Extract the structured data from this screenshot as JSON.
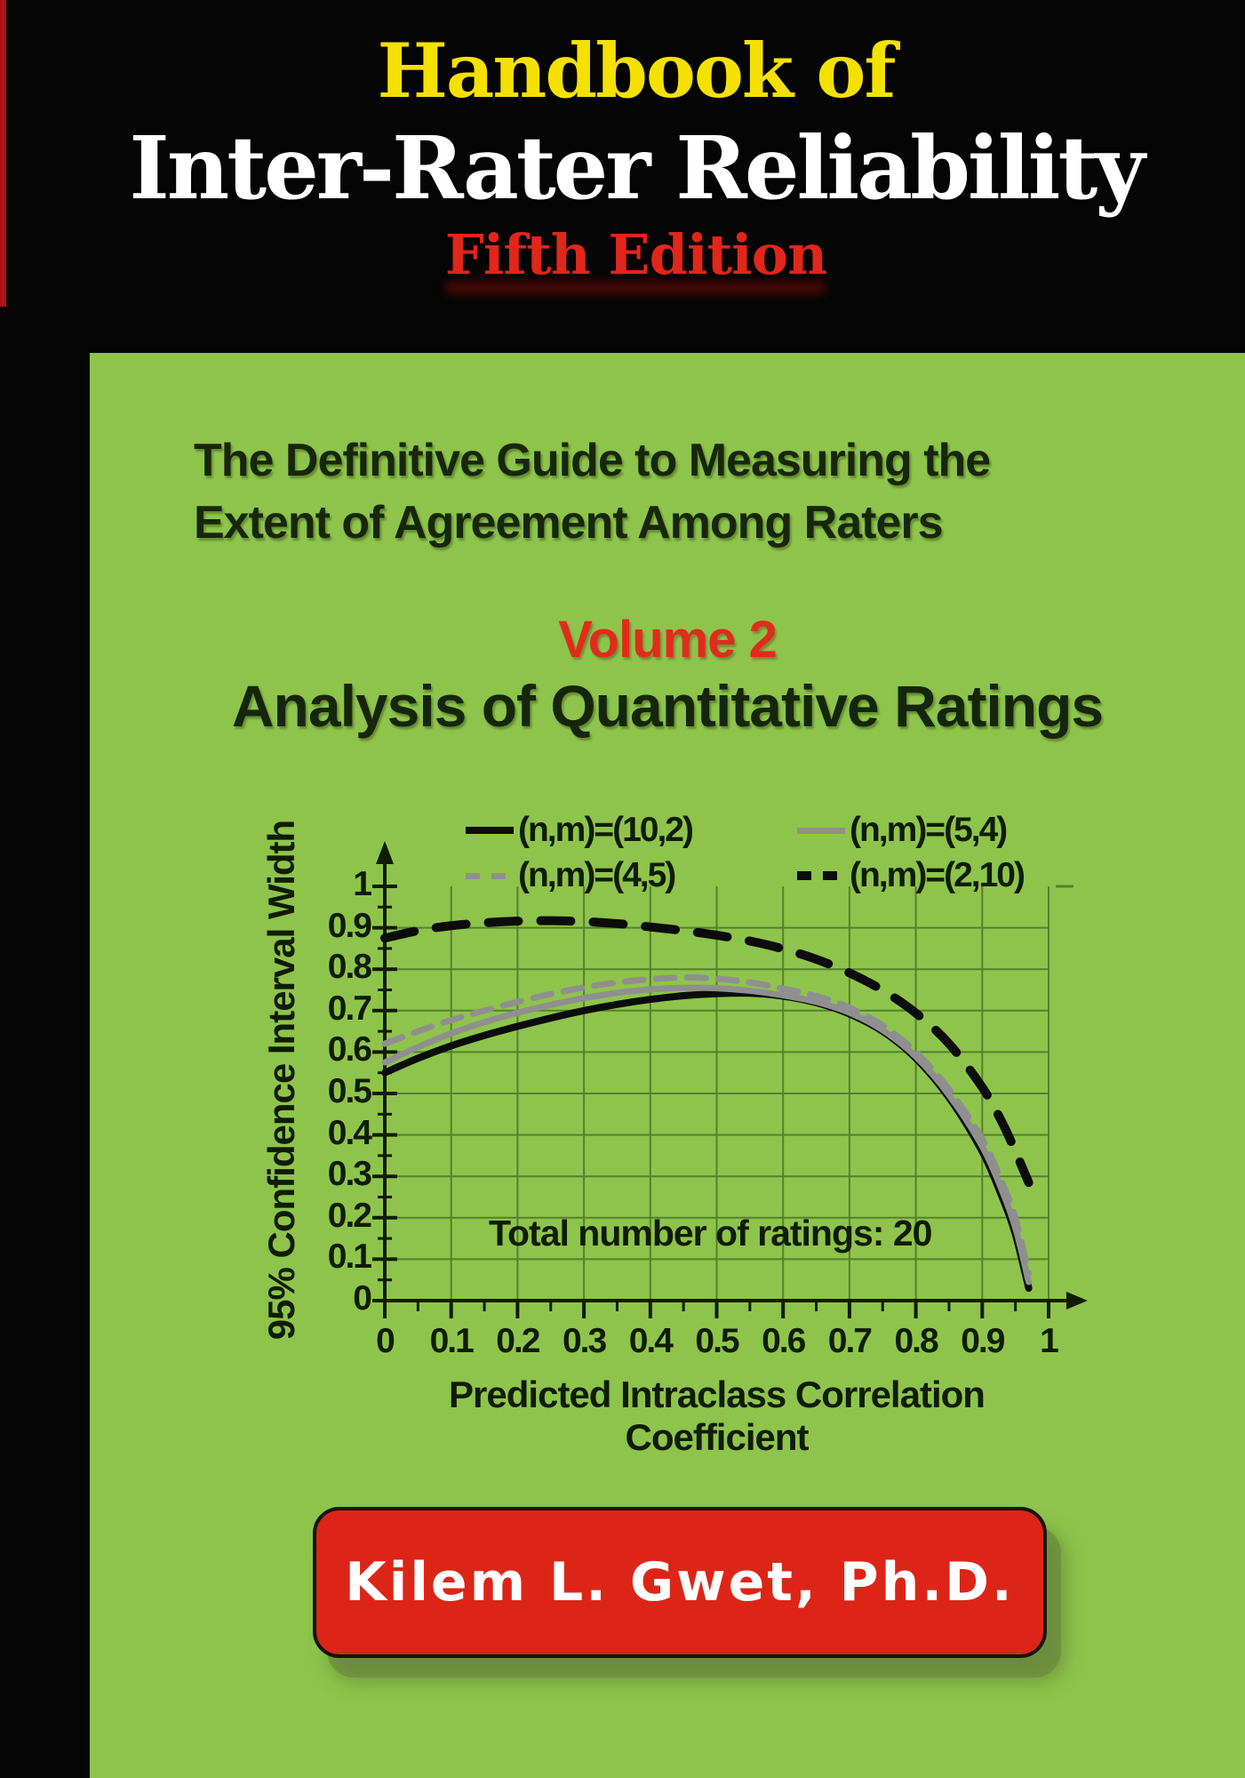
{
  "cover": {
    "title_top": "Handbook of",
    "title_main": "Inter-Rater Reliability",
    "edition": "Fifth Edition",
    "subtitle_line1": "The Definitive Guide to Measuring the",
    "subtitle_line2": "Extent of Agreement Among Raters",
    "volume": "Volume 2",
    "volume_subtitle": "Analysis of Quantitative Ratings",
    "author": "Kilem L. Gwet, Ph.D.",
    "colors": {
      "green_panel": "#8ec44b",
      "title_yellow": "#f5e100",
      "title_white": "#ffffff",
      "title_red": "#e2261a",
      "volume_red": "#e02b1d",
      "dark_text": "#16260c",
      "red_stripe": "#b01117",
      "author_box_red": "#dd2517",
      "curve_black": "#0c0c0c",
      "curve_gray": "#8f8f8f",
      "grid_green": "#55802e"
    }
  },
  "chart_data": {
    "type": "line",
    "title": "",
    "xlabel": "Predicted Intraclass Correlation Coefficient",
    "ylabel": "95% Confidence Interval Width",
    "annotation": "Total number of ratings: 20",
    "xlim": [
      0,
      1
    ],
    "ylim": [
      0,
      1
    ],
    "grid": true,
    "legend_position": "top",
    "x_ticks": [
      "0",
      "0.1",
      "0.2",
      "0.3",
      "0.4",
      "0.5",
      "0.6",
      "0.7",
      "0.8",
      "0.9",
      "1"
    ],
    "y_ticks": [
      "0",
      "0.1",
      "0.2",
      "0.3",
      "0.4",
      "0.5",
      "0.6",
      "0.7",
      "0.8",
      "0.9",
      "1"
    ],
    "series": [
      {
        "name": "(n,m)=(10,2)",
        "color": "#0c0c0c",
        "style": "solid",
        "width": 8,
        "points": [
          [
            0,
            0.55
          ],
          [
            0.05,
            0.585
          ],
          [
            0.1,
            0.615
          ],
          [
            0.15,
            0.64
          ],
          [
            0.2,
            0.662
          ],
          [
            0.25,
            0.682
          ],
          [
            0.3,
            0.7
          ],
          [
            0.35,
            0.715
          ],
          [
            0.4,
            0.727
          ],
          [
            0.45,
            0.736
          ],
          [
            0.5,
            0.741
          ],
          [
            0.55,
            0.742
          ],
          [
            0.6,
            0.735
          ],
          [
            0.65,
            0.719
          ],
          [
            0.7,
            0.692
          ],
          [
            0.75,
            0.65
          ],
          [
            0.8,
            0.585
          ],
          [
            0.85,
            0.49
          ],
          [
            0.9,
            0.36
          ],
          [
            0.93,
            0.25
          ],
          [
            0.95,
            0.16
          ],
          [
            0.97,
            0.03
          ]
        ]
      },
      {
        "name": "(n,m)=(5,4)",
        "color": "#8f8f8f",
        "style": "solid",
        "width": 7,
        "points": [
          [
            0,
            0.575
          ],
          [
            0.05,
            0.612
          ],
          [
            0.1,
            0.645
          ],
          [
            0.15,
            0.672
          ],
          [
            0.2,
            0.695
          ],
          [
            0.25,
            0.714
          ],
          [
            0.3,
            0.73
          ],
          [
            0.35,
            0.743
          ],
          [
            0.4,
            0.751
          ],
          [
            0.45,
            0.755
          ],
          [
            0.5,
            0.754
          ],
          [
            0.55,
            0.748
          ],
          [
            0.6,
            0.737
          ],
          [
            0.65,
            0.721
          ],
          [
            0.7,
            0.695
          ],
          [
            0.75,
            0.653
          ],
          [
            0.8,
            0.589
          ],
          [
            0.85,
            0.496
          ],
          [
            0.9,
            0.372
          ],
          [
            0.93,
            0.265
          ],
          [
            0.95,
            0.175
          ],
          [
            0.97,
            0.045
          ]
        ]
      },
      {
        "name": "(n,m)=(4,5)",
        "color": "#8f8f8f",
        "style": "dashed",
        "dash": "21 14",
        "width": 7,
        "points": [
          [
            0,
            0.62
          ],
          [
            0.05,
            0.65
          ],
          [
            0.1,
            0.677
          ],
          [
            0.15,
            0.7
          ],
          [
            0.2,
            0.721
          ],
          [
            0.25,
            0.74
          ],
          [
            0.3,
            0.756
          ],
          [
            0.35,
            0.768
          ],
          [
            0.4,
            0.776
          ],
          [
            0.45,
            0.78
          ],
          [
            0.5,
            0.777
          ],
          [
            0.55,
            0.768
          ],
          [
            0.6,
            0.753
          ],
          [
            0.65,
            0.735
          ],
          [
            0.7,
            0.707
          ],
          [
            0.75,
            0.664
          ],
          [
            0.8,
            0.6
          ],
          [
            0.85,
            0.51
          ],
          [
            0.9,
            0.39
          ],
          [
            0.93,
            0.285
          ],
          [
            0.95,
            0.2
          ],
          [
            0.97,
            0.065
          ]
        ]
      },
      {
        "name": "(n,m)=(2,10)",
        "color": "#0c0c0c",
        "style": "dashed",
        "dash": "34 25",
        "width": 10,
        "points": [
          [
            0,
            0.875
          ],
          [
            0.05,
            0.893
          ],
          [
            0.1,
            0.905
          ],
          [
            0.15,
            0.912
          ],
          [
            0.2,
            0.916
          ],
          [
            0.25,
            0.917
          ],
          [
            0.3,
            0.915
          ],
          [
            0.35,
            0.91
          ],
          [
            0.4,
            0.902
          ],
          [
            0.45,
            0.893
          ],
          [
            0.5,
            0.882
          ],
          [
            0.55,
            0.868
          ],
          [
            0.6,
            0.849
          ],
          [
            0.65,
            0.824
          ],
          [
            0.7,
            0.791
          ],
          [
            0.75,
            0.749
          ],
          [
            0.8,
            0.694
          ],
          [
            0.85,
            0.62
          ],
          [
            0.9,
            0.515
          ],
          [
            0.93,
            0.43
          ],
          [
            0.95,
            0.36
          ],
          [
            0.97,
            0.285
          ]
        ]
      }
    ]
  }
}
